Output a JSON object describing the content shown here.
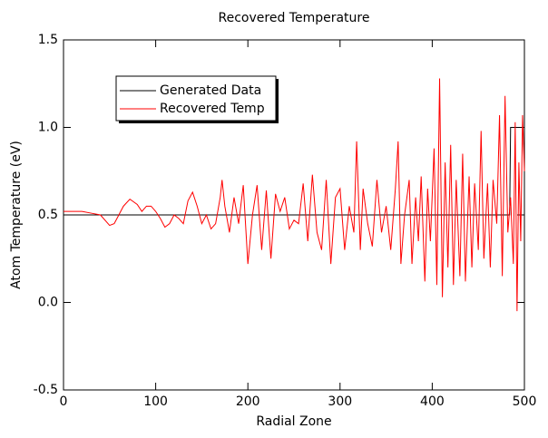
{
  "chart_data": {
    "type": "line",
    "title": "Recovered Temperature",
    "xlabel": "Radial Zone",
    "ylabel": "Atom Temperature (eV)",
    "xlim": [
      0,
      500
    ],
    "ylim": [
      -0.5,
      1.5
    ],
    "xticks": [
      0,
      100,
      200,
      300,
      400,
      500
    ],
    "yticks": [
      {
        "value": -0.5,
        "label": "-0.5"
      },
      {
        "value": 0,
        "label": "0.0"
      },
      {
        "value": 0.5,
        "label": "0.5"
      },
      {
        "value": 1,
        "label": "1.0"
      },
      {
        "value": 1.5,
        "label": "1.5"
      }
    ],
    "grid": false,
    "legend": "upper left",
    "series": [
      {
        "name": "Generated Data",
        "color": "#000000",
        "x": [
          0,
          484,
          485,
          500
        ],
        "values": [
          0.5,
          0.5,
          1.0,
          1.0
        ]
      },
      {
        "name": "Recovered Temp",
        "color": "#ff0000",
        "x": [
          0,
          10,
          20,
          30,
          40,
          50,
          55,
          65,
          72,
          80,
          85,
          90,
          95,
          100,
          105,
          110,
          115,
          120,
          125,
          130,
          135,
          140,
          145,
          150,
          155,
          160,
          165,
          170,
          172,
          175,
          180,
          185,
          190,
          195,
          200,
          205,
          210,
          215,
          220,
          225,
          230,
          235,
          240,
          245,
          250,
          255,
          260,
          265,
          270,
          275,
          280,
          285,
          290,
          295,
          300,
          305,
          310,
          315,
          318,
          322,
          325,
          330,
          335,
          340,
          345,
          350,
          355,
          360,
          363,
          366,
          370,
          375,
          378,
          382,
          385,
          388,
          392,
          395,
          398,
          402,
          405,
          408,
          411,
          414,
          417,
          420,
          423,
          426,
          430,
          433,
          436,
          440,
          443,
          446,
          450,
          453,
          456,
          460,
          463,
          466,
          470,
          473,
          476,
          479,
          482,
          485,
          488,
          490,
          492,
          494,
          496,
          498,
          500
        ],
        "values": [
          0.52,
          0.52,
          0.52,
          0.51,
          0.5,
          0.44,
          0.45,
          0.55,
          0.59,
          0.56,
          0.52,
          0.55,
          0.55,
          0.52,
          0.48,
          0.43,
          0.45,
          0.5,
          0.48,
          0.45,
          0.58,
          0.63,
          0.55,
          0.45,
          0.5,
          0.42,
          0.45,
          0.6,
          0.7,
          0.55,
          0.4,
          0.6,
          0.45,
          0.67,
          0.22,
          0.5,
          0.67,
          0.3,
          0.64,
          0.25,
          0.62,
          0.52,
          0.6,
          0.42,
          0.47,
          0.45,
          0.68,
          0.35,
          0.73,
          0.4,
          0.3,
          0.7,
          0.22,
          0.6,
          0.65,
          0.3,
          0.55,
          0.4,
          0.92,
          0.3,
          0.65,
          0.45,
          0.32,
          0.7,
          0.4,
          0.55,
          0.3,
          0.65,
          0.92,
          0.22,
          0.5,
          0.7,
          0.22,
          0.6,
          0.35,
          0.72,
          0.12,
          0.65,
          0.35,
          0.88,
          0.1,
          1.28,
          0.03,
          0.8,
          0.2,
          0.9,
          0.1,
          0.7,
          0.15,
          0.85,
          0.12,
          0.72,
          0.2,
          0.68,
          0.3,
          0.98,
          0.25,
          0.68,
          0.2,
          0.7,
          0.45,
          1.07,
          0.15,
          1.18,
          0.4,
          0.6,
          0.22,
          1.03,
          -0.05,
          0.8,
          0.35,
          1.07,
          0.75
        ]
      }
    ]
  }
}
